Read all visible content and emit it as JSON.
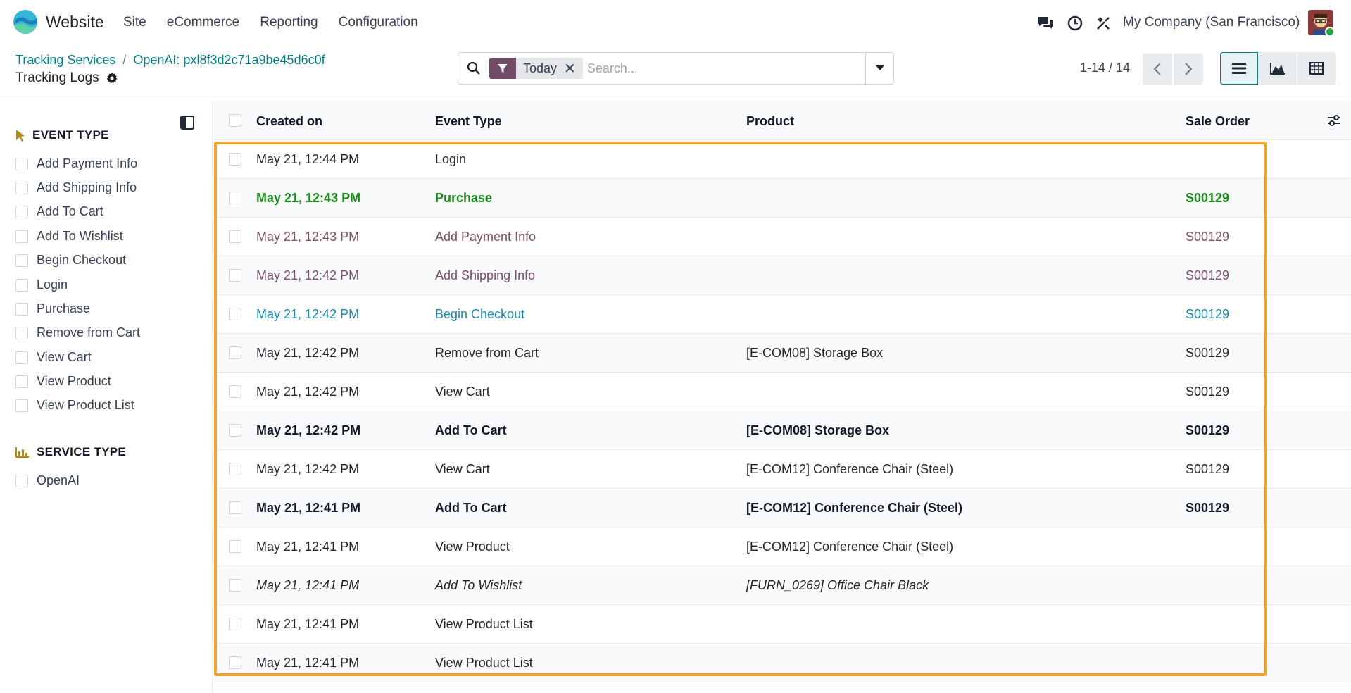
{
  "nav": {
    "app_name": "Website",
    "menu": [
      "Site",
      "eCommerce",
      "Reporting",
      "Configuration"
    ],
    "company": "My Company (San Francisco)"
  },
  "breadcrumb": {
    "parent": "Tracking Services",
    "current": "OpenAI: pxl8f3d2c71a9be45d6c0f",
    "page_title": "Tracking Logs"
  },
  "search": {
    "facet": "Today",
    "placeholder": "Search..."
  },
  "pager": {
    "text": "1-14 / 14"
  },
  "sidebar": {
    "event_type_title": "EVENT TYPE",
    "event_types": [
      "Add Payment Info",
      "Add Shipping Info",
      "Add To Cart",
      "Add To Wishlist",
      "Begin Checkout",
      "Login",
      "Purchase",
      "Remove from Cart",
      "View Cart",
      "View Product",
      "View Product List"
    ],
    "service_type_title": "SERVICE TYPE",
    "service_types": [
      "OpenAI"
    ]
  },
  "table": {
    "headers": {
      "created_on": "Created on",
      "event_type": "Event Type",
      "product": "Product",
      "sale_order": "Sale Order"
    },
    "rows": [
      {
        "created_on": "May 21, 12:44 PM",
        "event_type": "Login",
        "product": "",
        "sale_order": "",
        "style": "normal"
      },
      {
        "created_on": "May 21, 12:43 PM",
        "event_type": "Purchase",
        "product": "",
        "sale_order": "S00129",
        "style": "green"
      },
      {
        "created_on": "May 21, 12:43 PM",
        "event_type": "Add Payment Info",
        "product": "",
        "sale_order": "S00129",
        "style": "muted"
      },
      {
        "created_on": "May 21, 12:42 PM",
        "event_type": "Add Shipping Info",
        "product": "",
        "sale_order": "S00129",
        "style": "muted"
      },
      {
        "created_on": "May 21, 12:42 PM",
        "event_type": "Begin Checkout",
        "product": "",
        "sale_order": "S00129",
        "style": "info"
      },
      {
        "created_on": "May 21, 12:42 PM",
        "event_type": "Remove from Cart",
        "product": "[E-COM08] Storage Box",
        "sale_order": "S00129",
        "style": "normal"
      },
      {
        "created_on": "May 21, 12:42 PM",
        "event_type": "View Cart",
        "product": "",
        "sale_order": "S00129",
        "style": "normal"
      },
      {
        "created_on": "May 21, 12:42 PM",
        "event_type": "Add To Cart",
        "product": "[E-COM08] Storage Box",
        "sale_order": "S00129",
        "style": "bold"
      },
      {
        "created_on": "May 21, 12:42 PM",
        "event_type": "View Cart",
        "product": "[E-COM12] Conference Chair (Steel)",
        "sale_order": "S00129",
        "style": "normal"
      },
      {
        "created_on": "May 21, 12:41 PM",
        "event_type": "Add To Cart",
        "product": "[E-COM12] Conference Chair (Steel)",
        "sale_order": "S00129",
        "style": "bold"
      },
      {
        "created_on": "May 21, 12:41 PM",
        "event_type": "View Product",
        "product": "[E-COM12] Conference Chair (Steel)",
        "sale_order": "",
        "style": "normal"
      },
      {
        "created_on": "May 21, 12:41 PM",
        "event_type": "Add To Wishlist",
        "product": "[FURN_0269] Office Chair Black",
        "sale_order": "",
        "style": "ital"
      },
      {
        "created_on": "May 21, 12:41 PM",
        "event_type": "View Product List",
        "product": "",
        "sale_order": "",
        "style": "normal"
      },
      {
        "created_on": "May 21, 12:41 PM",
        "event_type": "View Product List",
        "product": "",
        "sale_order": "",
        "style": "normal"
      }
    ]
  },
  "colors": {
    "accent": "#017e84",
    "brand": "#714b67",
    "highlight": "#f5a02a"
  }
}
